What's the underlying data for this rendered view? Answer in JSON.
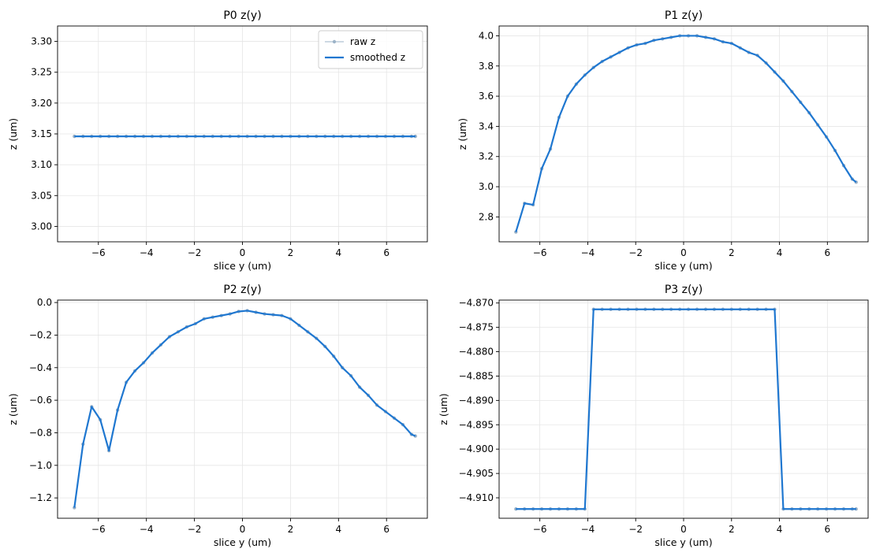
{
  "chart_data": [
    {
      "type": "line",
      "title": "P0 z(y)",
      "xlabel": "slice y (um)",
      "ylabel": "z (um)",
      "xlim": [
        -7.7,
        7.7
      ],
      "ylim": [
        2.975,
        3.325
      ],
      "xticks": [
        -6,
        -4,
        -2,
        0,
        2,
        4,
        6
      ],
      "yticks": [
        3.0,
        3.05,
        3.1,
        3.15,
        3.2,
        3.25,
        3.3
      ],
      "xtick_labels": [
        "−6",
        "−4",
        "−2",
        "0",
        "2",
        "4",
        "6"
      ],
      "ytick_labels": [
        "3.00",
        "3.05",
        "3.10",
        "3.15",
        "3.20",
        "3.25",
        "3.30"
      ],
      "grid": true,
      "legend": {
        "placement": "top-right",
        "entries": [
          "raw z",
          "smoothed z"
        ]
      },
      "x": [
        -7.0,
        -6.64,
        -6.28,
        -5.92,
        -5.56,
        -5.2,
        -4.84,
        -4.48,
        -4.12,
        -3.76,
        -3.4,
        -3.04,
        -2.68,
        -2.32,
        -1.96,
        -1.6,
        -1.24,
        -0.88,
        -0.52,
        -0.16,
        0.2,
        0.56,
        0.92,
        1.28,
        1.64,
        2.0,
        2.36,
        2.72,
        3.08,
        3.44,
        3.8,
        4.16,
        4.52,
        4.88,
        5.24,
        5.6,
        5.96,
        6.32,
        6.68,
        7.04,
        7.2
      ],
      "series": [
        {
          "name": "raw z",
          "values": [
            3.146,
            3.146,
            3.146,
            3.146,
            3.146,
            3.146,
            3.146,
            3.146,
            3.146,
            3.146,
            3.146,
            3.146,
            3.146,
            3.146,
            3.146,
            3.146,
            3.146,
            3.146,
            3.146,
            3.146,
            3.146,
            3.146,
            3.146,
            3.146,
            3.146,
            3.146,
            3.146,
            3.146,
            3.146,
            3.146,
            3.146,
            3.146,
            3.146,
            3.146,
            3.146,
            3.146,
            3.146,
            3.146,
            3.146,
            3.146,
            3.146
          ]
        },
        {
          "name": "smoothed z",
          "values": [
            3.146,
            3.146,
            3.146,
            3.146,
            3.146,
            3.146,
            3.146,
            3.146,
            3.146,
            3.146,
            3.146,
            3.146,
            3.146,
            3.146,
            3.146,
            3.146,
            3.146,
            3.146,
            3.146,
            3.146,
            3.146,
            3.146,
            3.146,
            3.146,
            3.146,
            3.146,
            3.146,
            3.146,
            3.146,
            3.146,
            3.146,
            3.146,
            3.146,
            3.146,
            3.146,
            3.146,
            3.146,
            3.146,
            3.146,
            3.146,
            3.146
          ]
        }
      ]
    },
    {
      "type": "line",
      "title": "P1 z(y)",
      "xlabel": "slice y (um)",
      "ylabel": "z (um)",
      "xlim": [
        -7.7,
        7.7
      ],
      "ylim": [
        2.635,
        4.065
      ],
      "xticks": [
        -6,
        -4,
        -2,
        0,
        2,
        4,
        6
      ],
      "yticks": [
        2.8,
        3.0,
        3.2,
        3.4,
        3.6,
        3.8,
        4.0
      ],
      "xtick_labels": [
        "−6",
        "−4",
        "−2",
        "0",
        "2",
        "4",
        "6"
      ],
      "ytick_labels": [
        "2.8",
        "3.0",
        "3.2",
        "3.4",
        "3.6",
        "3.8",
        "4.0"
      ],
      "grid": true,
      "x": [
        -7.0,
        -6.64,
        -6.28,
        -5.92,
        -5.56,
        -5.2,
        -4.84,
        -4.48,
        -4.12,
        -3.76,
        -3.4,
        -3.04,
        -2.68,
        -2.32,
        -1.96,
        -1.6,
        -1.24,
        -0.88,
        -0.52,
        -0.16,
        0.2,
        0.56,
        0.92,
        1.28,
        1.64,
        2.0,
        2.36,
        2.72,
        3.08,
        3.44,
        3.8,
        4.16,
        4.52,
        4.88,
        5.24,
        5.6,
        5.96,
        6.32,
        6.68,
        7.04,
        7.2
      ],
      "series": [
        {
          "name": "raw z",
          "values": [
            2.7,
            2.89,
            2.88,
            3.12,
            3.25,
            3.46,
            3.6,
            3.68,
            3.74,
            3.79,
            3.83,
            3.86,
            3.89,
            3.92,
            3.94,
            3.95,
            3.97,
            3.98,
            3.99,
            4.0,
            4.0,
            4.0,
            3.99,
            3.98,
            3.96,
            3.95,
            3.92,
            3.89,
            3.87,
            3.82,
            3.76,
            3.7,
            3.63,
            3.56,
            3.49,
            3.41,
            3.33,
            3.24,
            3.14,
            3.05,
            3.03
          ]
        },
        {
          "name": "smoothed z",
          "values": [
            2.7,
            2.89,
            2.88,
            3.12,
            3.25,
            3.46,
            3.6,
            3.68,
            3.74,
            3.79,
            3.83,
            3.86,
            3.89,
            3.92,
            3.94,
            3.95,
            3.97,
            3.98,
            3.99,
            4.0,
            4.0,
            4.0,
            3.99,
            3.98,
            3.96,
            3.95,
            3.92,
            3.89,
            3.87,
            3.82,
            3.76,
            3.7,
            3.63,
            3.56,
            3.49,
            3.41,
            3.33,
            3.24,
            3.14,
            3.05,
            3.03
          ]
        }
      ]
    },
    {
      "type": "line",
      "title": "P2 z(y)",
      "xlabel": "slice y (um)",
      "ylabel": "z (um)",
      "xlim": [
        -7.7,
        7.7
      ],
      "ylim": [
        -1.325,
        0.015
      ],
      "xticks": [
        -6,
        -4,
        -2,
        0,
        2,
        4,
        6
      ],
      "yticks": [
        -1.2,
        -1.0,
        -0.8,
        -0.6,
        -0.4,
        -0.2,
        0.0
      ],
      "xtick_labels": [
        "−6",
        "−4",
        "−2",
        "0",
        "2",
        "4",
        "6"
      ],
      "ytick_labels": [
        "−1.2",
        "−1.0",
        "−0.8",
        "−0.6",
        "−0.4",
        "−0.2",
        "0.0"
      ],
      "grid": true,
      "x": [
        -7.0,
        -6.64,
        -6.28,
        -5.92,
        -5.56,
        -5.2,
        -4.84,
        -4.48,
        -4.12,
        -3.76,
        -3.4,
        -3.04,
        -2.68,
        -2.32,
        -1.96,
        -1.6,
        -1.24,
        -0.88,
        -0.52,
        -0.16,
        0.2,
        0.56,
        0.92,
        1.28,
        1.64,
        2.0,
        2.36,
        2.72,
        3.08,
        3.44,
        3.8,
        4.16,
        4.52,
        4.88,
        5.24,
        5.6,
        5.96,
        6.32,
        6.68,
        7.04,
        7.2
      ],
      "series": [
        {
          "name": "raw z",
          "values": [
            -1.26,
            -0.87,
            -0.64,
            -0.72,
            -0.91,
            -0.66,
            -0.49,
            -0.42,
            -0.37,
            -0.31,
            -0.26,
            -0.21,
            -0.18,
            -0.15,
            -0.13,
            -0.1,
            -0.09,
            -0.08,
            -0.07,
            -0.055,
            -0.05,
            -0.06,
            -0.07,
            -0.075,
            -0.08,
            -0.1,
            -0.14,
            -0.18,
            -0.22,
            -0.27,
            -0.33,
            -0.4,
            -0.45,
            -0.52,
            -0.57,
            -0.63,
            -0.67,
            -0.71,
            -0.75,
            -0.81,
            -0.82
          ]
        },
        {
          "name": "smoothed z",
          "values": [
            -1.26,
            -0.87,
            -0.64,
            -0.72,
            -0.91,
            -0.66,
            -0.49,
            -0.42,
            -0.37,
            -0.31,
            -0.26,
            -0.21,
            -0.18,
            -0.15,
            -0.13,
            -0.1,
            -0.09,
            -0.08,
            -0.07,
            -0.055,
            -0.05,
            -0.06,
            -0.07,
            -0.075,
            -0.08,
            -0.1,
            -0.14,
            -0.18,
            -0.22,
            -0.27,
            -0.33,
            -0.4,
            -0.45,
            -0.52,
            -0.57,
            -0.63,
            -0.67,
            -0.71,
            -0.75,
            -0.81,
            -0.82
          ]
        }
      ]
    },
    {
      "type": "line",
      "title": "P3 z(y)",
      "xlabel": "slice y (um)",
      "ylabel": "z (um)",
      "xlim": [
        -7.7,
        7.7
      ],
      "ylim": [
        -4.9142,
        -4.8694
      ],
      "xticks": [
        -6,
        -4,
        -2,
        0,
        2,
        4,
        6
      ],
      "yticks": [
        -4.91,
        -4.905,
        -4.9,
        -4.895,
        -4.89,
        -4.885,
        -4.88,
        -4.875,
        -4.87
      ],
      "xtick_labels": [
        "−6",
        "−4",
        "−2",
        "0",
        "2",
        "4",
        "6"
      ],
      "ytick_labels": [
        "−4.910",
        "−4.905",
        "−4.900",
        "−4.895",
        "−4.890",
        "−4.885",
        "−4.880",
        "−4.875",
        "−4.870"
      ],
      "grid": true,
      "x": [
        -7.0,
        -6.64,
        -6.28,
        -5.92,
        -5.56,
        -5.2,
        -4.84,
        -4.48,
        -4.12,
        -3.76,
        -3.4,
        -3.04,
        -2.68,
        -2.32,
        -1.96,
        -1.6,
        -1.24,
        -0.88,
        -0.52,
        -0.16,
        0.2,
        0.56,
        0.92,
        1.28,
        1.64,
        2.0,
        2.36,
        2.72,
        3.08,
        3.44,
        3.8,
        4.16,
        4.52,
        4.88,
        5.24,
        5.6,
        5.96,
        6.32,
        6.68,
        7.04,
        7.2
      ],
      "series": [
        {
          "name": "raw z",
          "values": [
            -4.9123,
            -4.9123,
            -4.9123,
            -4.9123,
            -4.9123,
            -4.9123,
            -4.9123,
            -4.9123,
            -4.9123,
            -4.8713,
            -4.8713,
            -4.8713,
            -4.8713,
            -4.8713,
            -4.8713,
            -4.8713,
            -4.8713,
            -4.8713,
            -4.8713,
            -4.8713,
            -4.8713,
            -4.8713,
            -4.8713,
            -4.8713,
            -4.8713,
            -4.8713,
            -4.8713,
            -4.8713,
            -4.8713,
            -4.8713,
            -4.8713,
            -4.9123,
            -4.9123,
            -4.9123,
            -4.9123,
            -4.9123,
            -4.9123,
            -4.9123,
            -4.9123,
            -4.9123,
            -4.9123
          ]
        },
        {
          "name": "smoothed z",
          "values": [
            -4.9123,
            -4.9123,
            -4.9123,
            -4.9123,
            -4.9123,
            -4.9123,
            -4.9123,
            -4.9123,
            -4.9123,
            -4.8713,
            -4.8713,
            -4.8713,
            -4.8713,
            -4.8713,
            -4.8713,
            -4.8713,
            -4.8713,
            -4.8713,
            -4.8713,
            -4.8713,
            -4.8713,
            -4.8713,
            -4.8713,
            -4.8713,
            -4.8713,
            -4.8713,
            -4.8713,
            -4.8713,
            -4.8713,
            -4.8713,
            -4.8713,
            -4.9123,
            -4.9123,
            -4.9123,
            -4.9123,
            -4.9123,
            -4.9123,
            -4.9123,
            -4.9123,
            -4.9123,
            -4.9123
          ]
        }
      ]
    }
  ],
  "colors": {
    "raw": "#9db3c8",
    "smoothed": "#1f77d0",
    "grid": "#e6e6e6",
    "axis": "#000000"
  }
}
